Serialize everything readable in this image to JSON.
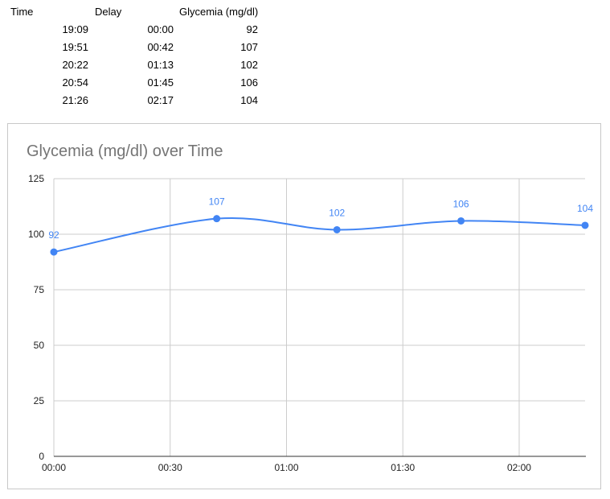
{
  "table": {
    "headers": [
      "Time",
      "Delay",
      "Glycemia (mg/dl)"
    ],
    "rows": [
      {
        "time": "19:09",
        "delay": "00:00",
        "glycemia": "92"
      },
      {
        "time": "19:51",
        "delay": "00:42",
        "glycemia": "107"
      },
      {
        "time": "20:22",
        "delay": "01:13",
        "glycemia": "102"
      },
      {
        "time": "20:54",
        "delay": "01:45",
        "glycemia": "106"
      },
      {
        "time": "21:26",
        "delay": "02:17",
        "glycemia": "104"
      }
    ]
  },
  "chart_data": {
    "type": "line",
    "title": "Glycemia (mg/dl) over Time",
    "xlabel": "",
    "ylabel": "",
    "x": [
      "00:00",
      "00:42",
      "01:13",
      "01:45",
      "02:17"
    ],
    "x_ticks": [
      "00:00",
      "00:30",
      "01:00",
      "01:30",
      "02:00"
    ],
    "xlim": [
      "00:00",
      "02:17"
    ],
    "y_ticks": [
      0,
      25,
      50,
      75,
      100,
      125
    ],
    "ylim": [
      0,
      125
    ],
    "series": [
      {
        "values": [
          92,
          107,
          102,
          106,
          104
        ],
        "data_labels": [
          "92",
          "107",
          "102",
          "106",
          "104"
        ],
        "color": "#4285f4",
        "smooth": true
      }
    ],
    "grid": true,
    "legend": "none"
  }
}
